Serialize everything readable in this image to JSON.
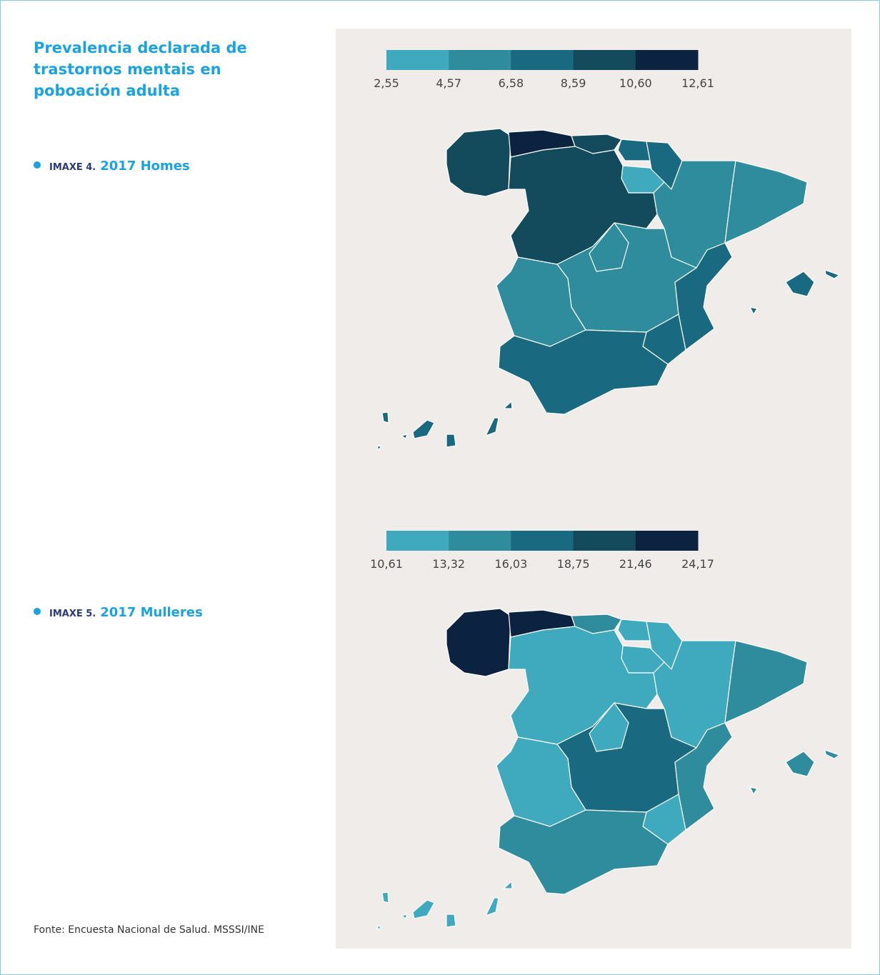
{
  "header": {
    "title": "Prevalencia declarada de trastornos mentais en poboación adulta"
  },
  "figures": [
    {
      "label": "IMAXE 4.",
      "subtitle": "2017 Homes",
      "legend": {
        "colors": [
          "#3fa9bd",
          "#2e8c9c",
          "#196a80",
          "#134a5c",
          "#0b2340"
        ],
        "breaks": [
          {
            "value": 2.55,
            "label": "2,55"
          },
          {
            "value": 4.57,
            "label": "4,57"
          },
          {
            "value": 6.58,
            "label": "6,58"
          },
          {
            "value": 8.59,
            "label": "8,59"
          },
          {
            "value": 10.6,
            "label": "10,60"
          },
          {
            "value": 12.61,
            "label": "12,61"
          }
        ]
      },
      "region_fills": [
        "#134a5c",
        "#0b2340",
        "#134a5c",
        "#196a80",
        "#196a80",
        "#3fa9bd",
        "#134a5c",
        "#2e8c9c",
        "#2e8c9c",
        "#2e8c9c",
        "#2e8c9c",
        "#196a80",
        "#196a80",
        "#2e8c9c",
        "#196a80",
        "#196a80",
        "#196a80"
      ]
    },
    {
      "label": "IMAXE 5.",
      "subtitle": "2017 Mulleres",
      "legend": {
        "colors": [
          "#3fa9bd",
          "#2e8c9c",
          "#196a80",
          "#134a5c",
          "#0b2340"
        ],
        "breaks": [
          {
            "value": 10.61,
            "label": "10,61"
          },
          {
            "value": 13.32,
            "label": "13,32"
          },
          {
            "value": 16.03,
            "label": "16,03"
          },
          {
            "value": 18.75,
            "label": "18,75"
          },
          {
            "value": 21.46,
            "label": "21,46"
          },
          {
            "value": 24.17,
            "label": "24,17"
          }
        ]
      },
      "region_fills": [
        "#0b2340",
        "#0b2340",
        "#2e8c9c",
        "#3fa9bd",
        "#3fa9bd",
        "#3fa9bd",
        "#3fa9bd",
        "#3fa9bd",
        "#2e8c9c",
        "#196a80",
        "#3fa9bd",
        "#2e8c9c",
        "#3fa9bd",
        "#3fa9bd",
        "#2e8c9c",
        "#2e8c9c",
        "#3fa9bd"
      ]
    }
  ],
  "source": "Fonte: Encuesta Nacional de Salud. MSSSI/INE"
}
